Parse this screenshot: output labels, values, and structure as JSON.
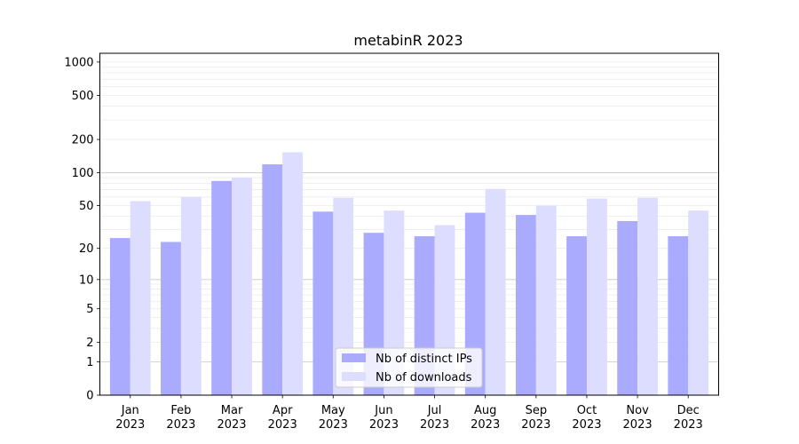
{
  "chart_data": {
    "type": "bar",
    "title": "metabinR 2023",
    "xlabel": "",
    "ylabel": "",
    "yscale": "log1p",
    "ylim": [
      0,
      1200
    ],
    "yticks": [
      0,
      1,
      2,
      5,
      10,
      20,
      50,
      100,
      200,
      500,
      1000
    ],
    "ytick_labels": [
      "0",
      "1",
      "2",
      "5",
      "10",
      "20",
      "50",
      "100",
      "200",
      "500",
      "1000"
    ],
    "categories": [
      [
        "Jan",
        "2023"
      ],
      [
        "Feb",
        "2023"
      ],
      [
        "Mar",
        "2023"
      ],
      [
        "Apr",
        "2023"
      ],
      [
        "May",
        "2023"
      ],
      [
        "Jun",
        "2023"
      ],
      [
        "Jul",
        "2023"
      ],
      [
        "Aug",
        "2023"
      ],
      [
        "Sep",
        "2023"
      ],
      [
        "Oct",
        "2023"
      ],
      [
        "Nov",
        "2023"
      ],
      [
        "Dec",
        "2023"
      ]
    ],
    "series": [
      {
        "name": "Nb of distinct IPs",
        "color": "#aaaaff",
        "values": [
          25,
          23,
          84,
          119,
          44,
          28,
          26,
          43,
          41,
          26,
          36,
          26
        ]
      },
      {
        "name": "Nb of downloads",
        "color": "#ddddff",
        "values": [
          55,
          60,
          90,
          153,
          59,
          45,
          33,
          71,
          50,
          58,
          59,
          45
        ]
      }
    ],
    "grid": true,
    "legend_position": "bottom-center"
  }
}
